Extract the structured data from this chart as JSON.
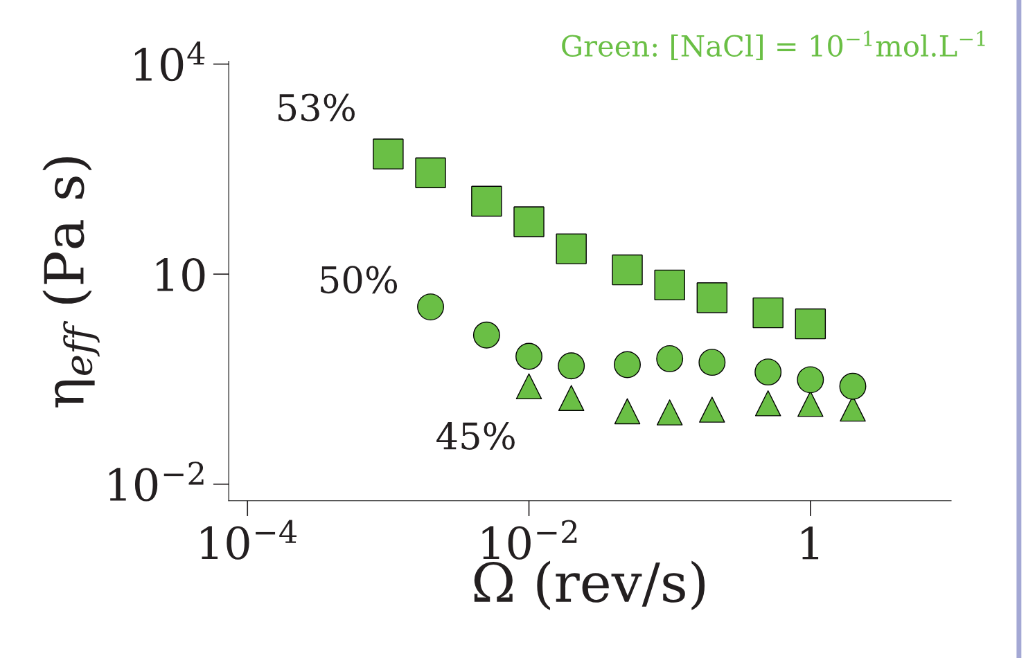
{
  "chart_data": {
    "type": "scatter",
    "xlabel": "Ω (rev/s)",
    "ylabel": "η$_{eff}$ (Pa s)",
    "log": "xy",
    "xlim": [
      7.36e-05,
      10
    ],
    "ylim": [
      0.0058,
      11000
    ],
    "xticks": [
      {
        "value": 0.0001,
        "label": "10$^{−4}$"
      },
      {
        "value": 0.01,
        "label": "10$^{−2}$"
      },
      1
    ],
    "yticks": [
      {
        "value": 0.01,
        "label": "10$^{−2}$"
      },
      10,
      {
        "value": 10000,
        "label": "10$^{4}$"
      }
    ],
    "grid": false,
    "legend": false,
    "annotations": [
      "Green: [NaCl] = 10$^{−1}$mol.L$^{−1}$"
    ],
    "series": [
      {
        "name": "53%",
        "color": "#6abf45",
        "marker": "square",
        "x": [
          0.001,
          0.002,
          0.005,
          0.01,
          0.02,
          0.05,
          0.1,
          0.2,
          0.5,
          1
        ],
        "values": [
          520,
          280,
          110,
          56,
          23,
          11.5,
          7,
          4.6,
          2.8,
          1.95
        ]
      },
      {
        "name": "50%",
        "color": "#6abf45",
        "marker": "circle",
        "x": [
          0.002,
          0.005,
          0.01,
          0.02,
          0.05,
          0.1,
          0.2,
          0.5,
          1,
          2
        ],
        "values": [
          3.4,
          1.35,
          0.67,
          0.49,
          0.51,
          0.62,
          0.55,
          0.4,
          0.31,
          0.25
        ]
      },
      {
        "name": "45%",
        "color": "#6abf45",
        "marker": "triangle",
        "x": [
          0.01,
          0.02,
          0.05,
          0.1,
          0.2,
          0.5,
          1,
          2
        ],
        "values": [
          0.25,
          0.17,
          0.11,
          0.106,
          0.116,
          0.143,
          0.14,
          0.12
        ]
      }
    ]
  }
}
